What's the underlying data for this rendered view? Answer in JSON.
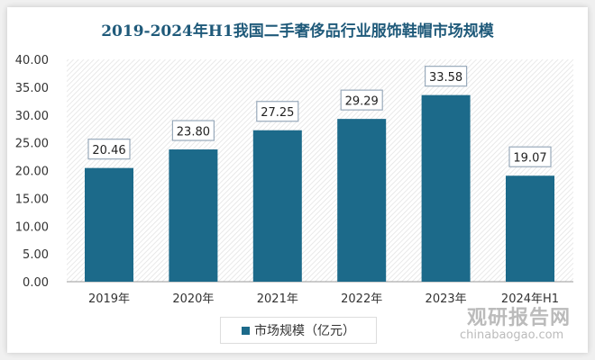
{
  "chart_data": {
    "type": "bar",
    "title": "2019-2024年H1我国二手奢侈品行业服饰鞋帽市场规模",
    "categories": [
      "2019年",
      "2020年",
      "2021年",
      "2022年",
      "2023年",
      "2024年H1"
    ],
    "series": [
      {
        "name": "市场规模（亿元）",
        "values": [
          20.46,
          23.8,
          27.25,
          29.29,
          33.58,
          19.07
        ]
      }
    ],
    "data_labels": [
      "20.46",
      "23.80",
      "27.25",
      "29.29",
      "33.58",
      "19.07"
    ],
    "ylim": [
      0,
      40
    ],
    "yticks": [
      "0.00",
      "5.00",
      "10.00",
      "15.00",
      "20.00",
      "25.00",
      "30.00",
      "35.00",
      "40.00"
    ],
    "legend": "bottom",
    "grid": false,
    "colors": {
      "bar": "#1c6a8a",
      "title": "#1f5a7a"
    }
  },
  "watermark": {
    "cn": "观研报告网",
    "en": "chinabaogao.com"
  }
}
